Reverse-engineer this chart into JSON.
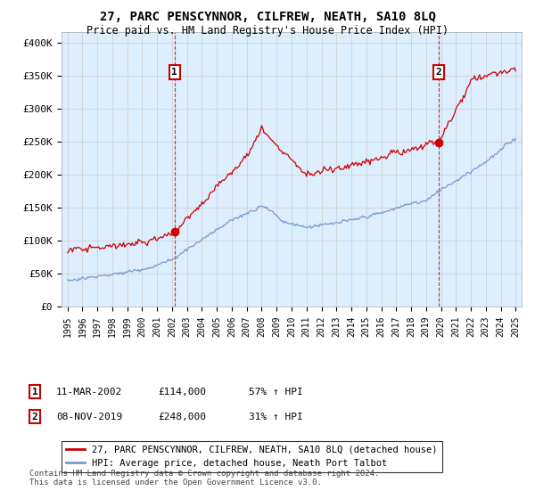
{
  "title": "27, PARC PENSCYNNOR, CILFREW, NEATH, SA10 8LQ",
  "subtitle": "Price paid vs. HM Land Registry's House Price Index (HPI)",
  "yticks": [
    0,
    50000,
    100000,
    150000,
    200000,
    250000,
    300000,
    350000,
    400000
  ],
  "ytick_labels": [
    "£0",
    "£50K",
    "£100K",
    "£150K",
    "£200K",
    "£250K",
    "£300K",
    "£350K",
    "£400K"
  ],
  "ylim": [
    0,
    415000
  ],
  "red_line_color": "#cc0000",
  "blue_line_color": "#7799cc",
  "vline_color": "#cc0000",
  "plot_bg_color": "#ddeeff",
  "transaction1": {
    "date": "11-MAR-2002",
    "price": 114000,
    "pct": "57%",
    "label": "1",
    "year": 2002.17
  },
  "transaction2": {
    "date": "08-NOV-2019",
    "price": 248000,
    "pct": "31%",
    "label": "2",
    "year": 2019.83
  },
  "legend_red": "27, PARC PENSCYNNOR, CILFREW, NEATH, SA10 8LQ (detached house)",
  "legend_blue": "HPI: Average price, detached house, Neath Port Talbot",
  "footer": "Contains HM Land Registry data © Crown copyright and database right 2024.\nThis data is licensed under the Open Government Licence v3.0.",
  "background_color": "#ffffff",
  "grid_color": "#cccccc"
}
